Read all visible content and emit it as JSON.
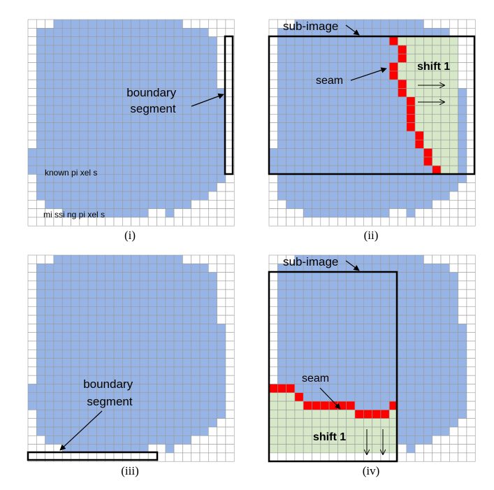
{
  "panels": [
    {
      "id": "i",
      "caption": "(i)",
      "labels": {
        "boundary": "boundary\nsegment",
        "known": "known  pi xel s",
        "missing": "mi ssi ng  pi xel s"
      }
    },
    {
      "id": "ii",
      "caption": "(ii)",
      "labels": {
        "subimage": "sub-image",
        "seam": "seam",
        "shift": "shift 1"
      }
    },
    {
      "id": "iii",
      "caption": "(iii)",
      "labels": {
        "boundary": "boundary\nsegment"
      }
    },
    {
      "id": "iv",
      "caption": "(iv)",
      "labels": {
        "subimage": "sub-image",
        "seam": "seam",
        "shift": "shift 1"
      }
    }
  ],
  "colors": {
    "known": "#97b4e6",
    "missing": "#ffffff",
    "grid": "#9a9a9a",
    "seam": "#ff0000",
    "shifted": "#d6e8c8",
    "frame": "#000000"
  }
}
